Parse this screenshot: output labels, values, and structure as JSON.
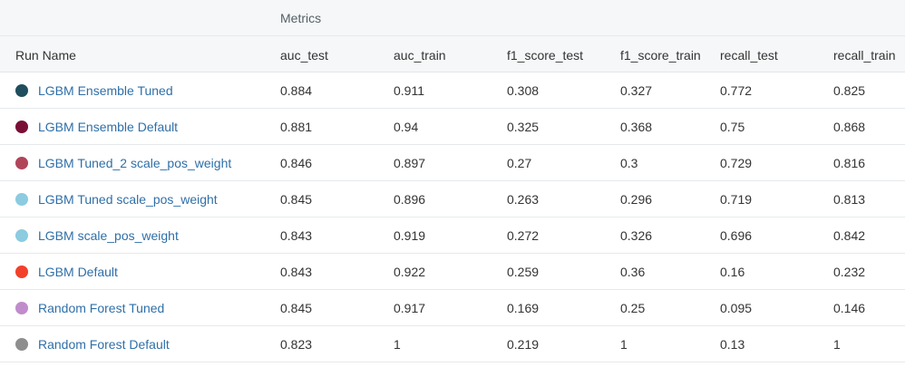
{
  "group_header": "Metrics",
  "columns": {
    "run_name": "Run Name",
    "auc_test": "auc_test",
    "auc_train": "auc_train",
    "f1_score_test": "f1_score_test",
    "f1_score_train": "f1_score_train",
    "recall_test": "recall_test",
    "recall_train": "recall_train"
  },
  "rows": [
    {
      "name": "LGBM Ensemble Tuned",
      "color": "#1f4e5f",
      "auc_test": "0.884",
      "auc_train": "0.911",
      "f1_score_test": "0.308",
      "f1_score_train": "0.327",
      "recall_test": "0.772",
      "recall_train": "0.825"
    },
    {
      "name": "LGBM Ensemble Default",
      "color": "#7a0f35",
      "auc_test": "0.881",
      "auc_train": "0.94",
      "f1_score_test": "0.325",
      "f1_score_train": "0.368",
      "recall_test": "0.75",
      "recall_train": "0.868"
    },
    {
      "name": "LGBM Tuned_2 scale_pos_weight",
      "color": "#b0455a",
      "auc_test": "0.846",
      "auc_train": "0.897",
      "f1_score_test": "0.27",
      "f1_score_train": "0.3",
      "recall_test": "0.729",
      "recall_train": "0.816"
    },
    {
      "name": "LGBM Tuned scale_pos_weight",
      "color": "#8ccbe0",
      "auc_test": "0.845",
      "auc_train": "0.896",
      "f1_score_test": "0.263",
      "f1_score_train": "0.296",
      "recall_test": "0.719",
      "recall_train": "0.813"
    },
    {
      "name": "LGBM scale_pos_weight",
      "color": "#8ccbe0",
      "auc_test": "0.843",
      "auc_train": "0.919",
      "f1_score_test": "0.272",
      "f1_score_train": "0.326",
      "recall_test": "0.696",
      "recall_train": "0.842"
    },
    {
      "name": "LGBM Default",
      "color": "#f2402a",
      "auc_test": "0.843",
      "auc_train": "0.922",
      "f1_score_test": "0.259",
      "f1_score_train": "0.36",
      "recall_test": "0.16",
      "recall_train": "0.232"
    },
    {
      "name": "Random Forest Tuned",
      "color": "#c08ccc",
      "auc_test": "0.845",
      "auc_train": "0.917",
      "f1_score_test": "0.169",
      "f1_score_train": "0.25",
      "recall_test": "0.095",
      "recall_train": "0.146"
    },
    {
      "name": "Random Forest Default",
      "color": "#8e8e8e",
      "auc_test": "0.823",
      "auc_train": "1",
      "f1_score_test": "0.219",
      "f1_score_train": "1",
      "recall_test": "0.13",
      "recall_train": "1"
    }
  ]
}
